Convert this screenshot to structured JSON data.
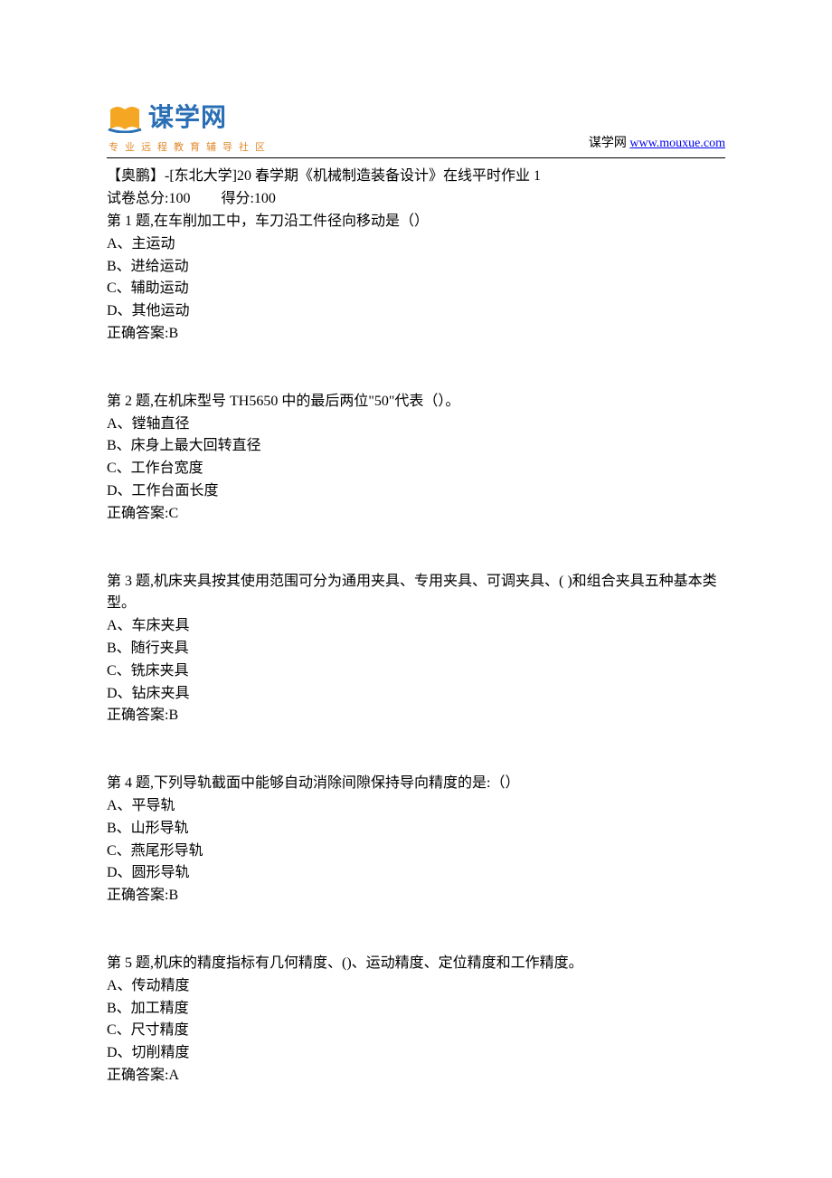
{
  "header": {
    "logo_main": "谋学网",
    "logo_tagline": "专业远程教育辅导社区",
    "site_label": "谋学网 ",
    "site_url": "www.mouxue.com",
    "logo_colors": {
      "book_orange": "#f5a623",
      "swoosh_blue": "#2a6fb5"
    }
  },
  "exam": {
    "title": "【奥鹏】-[东北大学]20 春学期《机械制造装备设计》在线平时作业 1",
    "score_total_label": "试卷总分:100",
    "score_obtained_label": "得分:100"
  },
  "questions": [
    {
      "prompt": "第 1 题,在车削加工中，车刀沿工件径向移动是（）",
      "options": [
        "A、主运动",
        "B、进给运动",
        "C、辅助运动",
        "D、其他运动"
      ],
      "answer": "正确答案:B"
    },
    {
      "prompt": "第 2 题,在机床型号 TH5650 中的最后两位\"50\"代表（）。",
      "options": [
        "A、镗轴直径",
        "B、床身上最大回转直径",
        "C、工作台宽度",
        "D、工作台面长度"
      ],
      "answer": "正确答案:C"
    },
    {
      "prompt": "第 3 题,机床夹具按其使用范围可分为通用夹具、专用夹具、可调夹具、(  )和组合夹具五种基本类型。",
      "options": [
        "A、车床夹具",
        "B、随行夹具",
        "C、铣床夹具",
        "D、钻床夹具"
      ],
      "answer": "正确答案:B"
    },
    {
      "prompt": "第 4 题,下列导轨截面中能够自动消除间隙保持导向精度的是:（）",
      "options": [
        "A、平导轨",
        "B、山形导轨",
        "C、燕尾形导轨",
        "D、圆形导轨"
      ],
      "answer": "正确答案:B"
    },
    {
      "prompt": "第 5 题,机床的精度指标有几何精度、()、运动精度、定位精度和工作精度。",
      "options": [
        "A、传动精度",
        "B、加工精度",
        "C、尺寸精度",
        "D、切削精度"
      ],
      "answer": "正确答案:A"
    }
  ]
}
